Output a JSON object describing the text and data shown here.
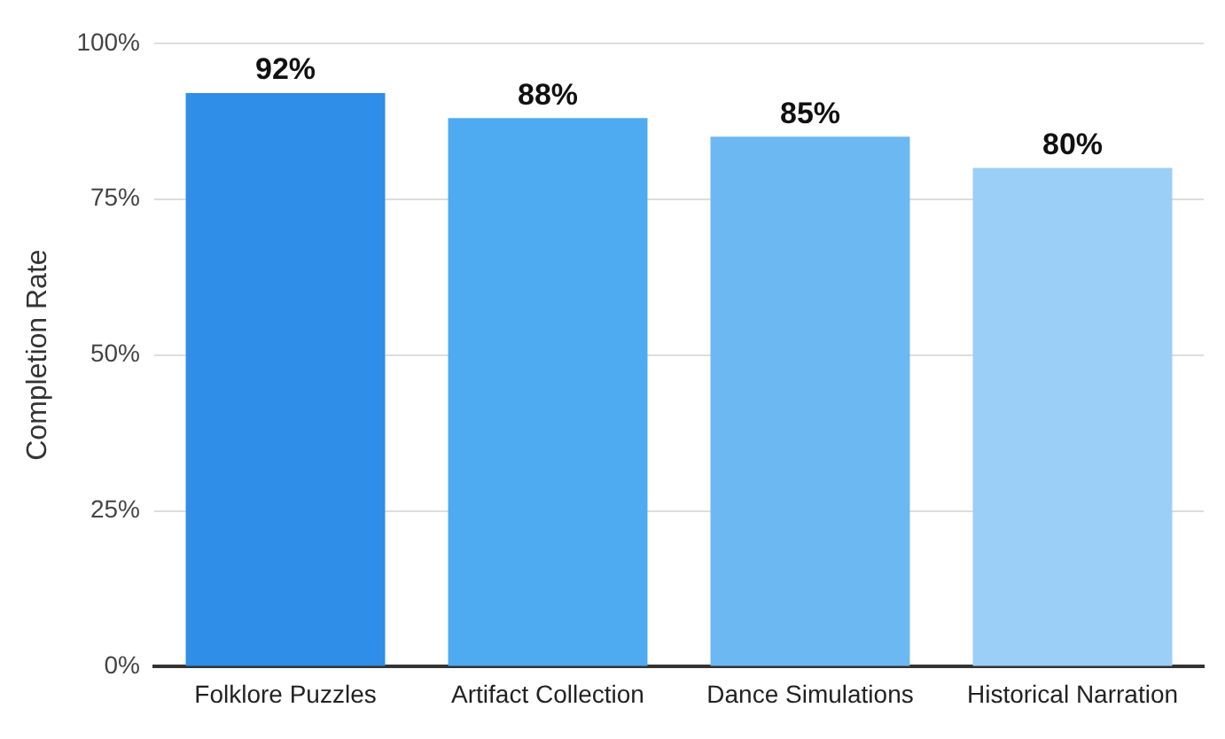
{
  "chart_data": {
    "type": "bar",
    "ylabel": "Completion Rate",
    "categories": [
      "Folklore Puzzles",
      "Artifact Collection",
      "Dance Simulations",
      "Historical Narration"
    ],
    "values": [
      92,
      88,
      85,
      80
    ],
    "colors": [
      "#2f8ee8",
      "#4eaaf1",
      "#6cb8f3",
      "#9bcff8"
    ],
    "ylim": [
      0,
      100
    ],
    "yticks": [
      {
        "value": 0,
        "label": "0%"
      },
      {
        "value": 25,
        "label": "25%"
      },
      {
        "value": 50,
        "label": "50%"
      },
      {
        "value": 75,
        "label": "75%"
      },
      {
        "value": 100,
        "label": "100%"
      }
    ],
    "value_labels": [
      "92%",
      "88%",
      "85%",
      "80%"
    ],
    "grid": "y"
  }
}
